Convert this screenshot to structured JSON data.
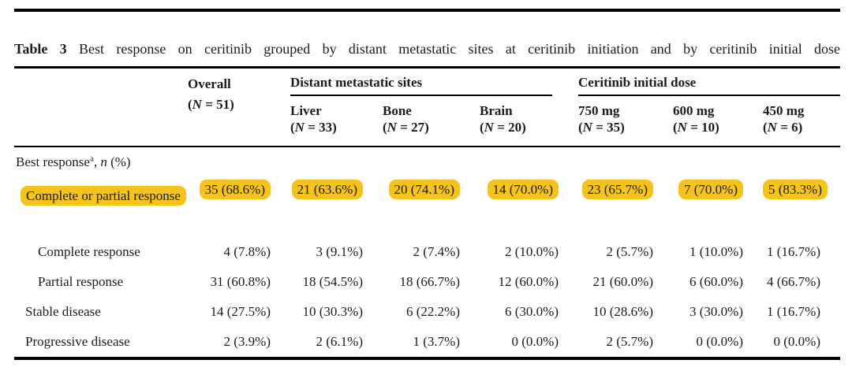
{
  "colors": {
    "highlight": "#F5C31A"
  },
  "caption": {
    "label": "Table 3",
    "text": "Best response on ceritinib grouped by distant metastatic sites at ceritinib initiation and by ceritinib initial dose"
  },
  "header": {
    "n_format": {
      "open": "(",
      "symbol": "N",
      "equals": " = ",
      "close": ")"
    },
    "overall": {
      "label": "Overall",
      "n": "51"
    },
    "groups": [
      {
        "label": "Distant metastatic sites",
        "columns": [
          {
            "label": "Liver",
            "n": "33"
          },
          {
            "label": "Bone",
            "n": "27"
          },
          {
            "label": "Brain",
            "n": "20"
          }
        ]
      },
      {
        "label": "Ceritinib initial dose",
        "columns": [
          {
            "label": "750 mg",
            "n": "35"
          },
          {
            "label": "600 mg",
            "n": "10"
          },
          {
            "label": "450 mg",
            "n": "6"
          }
        ]
      }
    ]
  },
  "section": {
    "label": "Best response",
    "footnote_marker": "a",
    "separator": ", ",
    "count_symbol": "n",
    "count_suffix": " (%)"
  },
  "rows": [
    {
      "label": "Complete or partial response",
      "highlight": true,
      "values": [
        "35 (68.6%)",
        "21 (63.6%)",
        "20 (74.1%)",
        "14 (70.0%)",
        "23 (65.7%)",
        "7 (70.0%)",
        "5 (83.3%)"
      ]
    },
    {
      "label": "Complete response",
      "highlight": false,
      "values": [
        "4 (7.8%)",
        "3 (9.1%)",
        "2 (7.4%)",
        "2 (10.0%)",
        "2 (5.7%)",
        "1 (10.0%)",
        "1 (16.7%)"
      ]
    },
    {
      "label": "Partial response",
      "highlight": false,
      "values": [
        "31 (60.8%)",
        "18 (54.5%)",
        "18 (66.7%)",
        "12 (60.0%)",
        "21 (60.0%)",
        "6 (60.0%)",
        "4 (66.7%)"
      ]
    },
    {
      "label": "Stable disease",
      "highlight": false,
      "values": [
        "14 (27.5%)",
        "10 (30.3%)",
        "6 (22.2%)",
        "6 (30.0%)",
        "10 (28.6%)",
        "3 (30.0%)",
        "1 (16.7%)"
      ]
    },
    {
      "label": "Progressive disease",
      "highlight": false,
      "values": [
        "2 (3.9%)",
        "2 (6.1%)",
        "1 (3.7%)",
        "0 (0.0%)",
        "2 (5.7%)",
        "0 (0.0%)",
        "0 (0.0%)"
      ]
    }
  ]
}
